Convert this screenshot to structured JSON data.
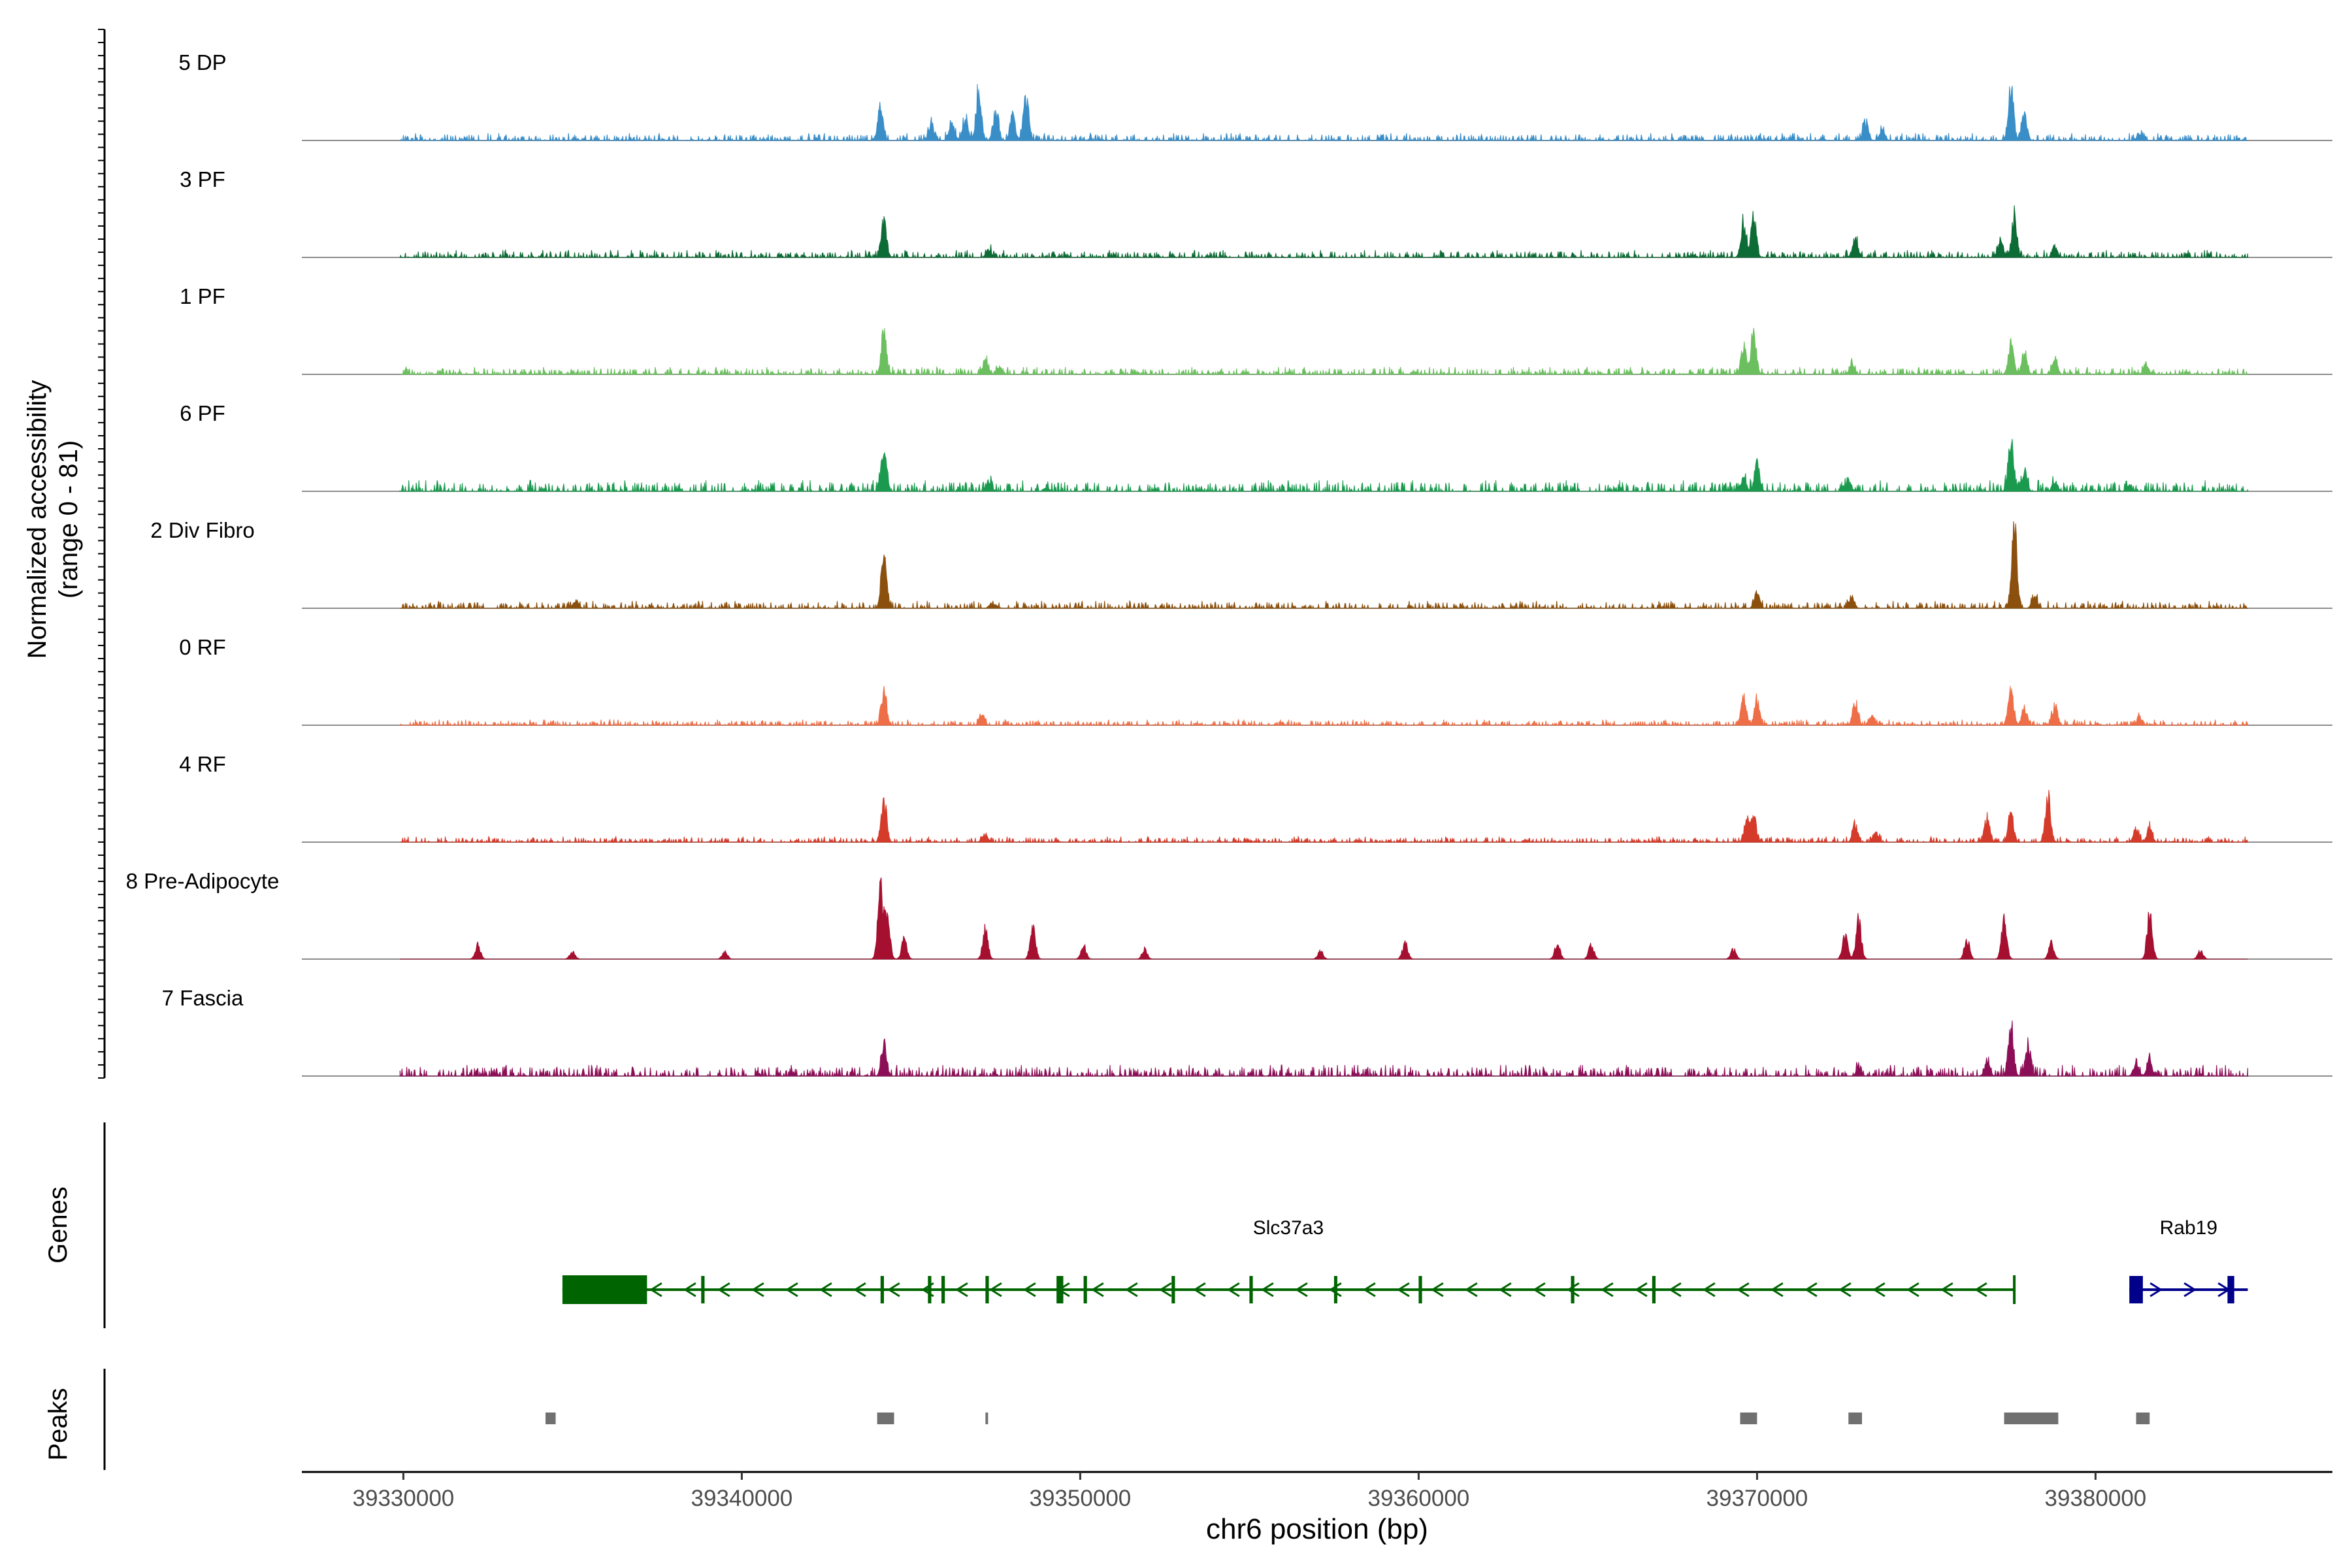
{
  "chart_data": {
    "type": "area",
    "xlabel": "chr6 position (bp)",
    "ylabel_line1": "Normalized accessibility",
    "ylabel_line2": "(range 0 - 81)",
    "xlim": [
      39327000,
      39387000
    ],
    "xticks": [
      39330000,
      39340000,
      39350000,
      39360000,
      39370000,
      39380000
    ],
    "signal_range": [
      0,
      81
    ],
    "track_labels": {
      "genes": "Genes",
      "peaks": "Peaks"
    },
    "series": [
      {
        "name": "5 DP",
        "color": "#3a8ec8",
        "bg": 2.0,
        "peaks": [
          [
            39344100,
            33
          ],
          [
            39345600,
            15
          ],
          [
            39346200,
            18
          ],
          [
            39346600,
            22
          ],
          [
            39347000,
            50
          ],
          [
            39347500,
            30
          ],
          [
            39348000,
            25
          ],
          [
            39348400,
            42
          ],
          [
            39373200,
            20
          ],
          [
            39373700,
            10
          ],
          [
            39377500,
            55
          ],
          [
            39377900,
            25
          ],
          [
            39381300,
            7
          ]
        ]
      },
      {
        "name": "3 PF",
        "color": "#0d6b35",
        "bg": 2.0,
        "peaks": [
          [
            39344200,
            35
          ],
          [
            39347300,
            8
          ],
          [
            39369600,
            32
          ],
          [
            39369900,
            40
          ],
          [
            39372900,
            18
          ],
          [
            39377600,
            40
          ],
          [
            39377200,
            14
          ],
          [
            39378800,
            10
          ]
        ]
      },
      {
        "name": "1 PF",
        "color": "#6bbf5e",
        "bg": 2.0,
        "peaks": [
          [
            39344200,
            45
          ],
          [
            39347200,
            14
          ],
          [
            39347600,
            8
          ],
          [
            39369600,
            28
          ],
          [
            39369900,
            38
          ],
          [
            39372800,
            9
          ],
          [
            39377500,
            30
          ],
          [
            39377900,
            20
          ],
          [
            39378800,
            14
          ],
          [
            39381500,
            8
          ]
        ]
      },
      {
        "name": "6 PF",
        "color": "#1b9a4f",
        "bg": 3.0,
        "peaks": [
          [
            39344200,
            45
          ],
          [
            39347300,
            10
          ],
          [
            39349000,
            4
          ],
          [
            39369600,
            14
          ],
          [
            39370000,
            28
          ],
          [
            39372700,
            12
          ],
          [
            39377500,
            55
          ],
          [
            39377900,
            20
          ],
          [
            39378800,
            10
          ],
          [
            39381000,
            6
          ]
        ]
      },
      {
        "name": "2 Div Fibro",
        "color": "#8b500e",
        "bg": 2.0,
        "peaks": [
          [
            39335100,
            8
          ],
          [
            39344200,
            52
          ],
          [
            39347400,
            6
          ],
          [
            39370000,
            16
          ],
          [
            39372800,
            9
          ],
          [
            39377600,
            78
          ],
          [
            39378200,
            12
          ]
        ]
      },
      {
        "name": "0 RF",
        "color": "#ee6e47",
        "bg": 1.5,
        "peaks": [
          [
            39344200,
            34
          ],
          [
            39347100,
            10
          ],
          [
            39369600,
            26
          ],
          [
            39370000,
            26
          ],
          [
            39372900,
            24
          ],
          [
            39373400,
            10
          ],
          [
            39377500,
            40
          ],
          [
            39377900,
            15
          ],
          [
            39378800,
            20
          ],
          [
            39381300,
            8
          ]
        ]
      },
      {
        "name": "4 RF",
        "color": "#d43b2a",
        "bg": 1.5,
        "peaks": [
          [
            39344200,
            42
          ],
          [
            39347200,
            7
          ],
          [
            39369700,
            22
          ],
          [
            39369900,
            24
          ],
          [
            39372900,
            18
          ],
          [
            39373500,
            10
          ],
          [
            39376800,
            25
          ],
          [
            39377500,
            30
          ],
          [
            39378600,
            45
          ],
          [
            39381200,
            12
          ],
          [
            39381600,
            14
          ]
        ]
      },
      {
        "name": "8 Pre-Adipocyte",
        "color": "#a50f30",
        "bg": 0.0,
        "peaks": [
          [
            39332200,
            14
          ],
          [
            39335000,
            8
          ],
          [
            39339500,
            8
          ],
          [
            39344100,
            76
          ],
          [
            39344300,
            40
          ],
          [
            39344800,
            20
          ],
          [
            39347200,
            30
          ],
          [
            39348600,
            32
          ],
          [
            39350100,
            14
          ],
          [
            39351900,
            10
          ],
          [
            39357100,
            8
          ],
          [
            39359600,
            16
          ],
          [
            39364100,
            16
          ],
          [
            39365100,
            14
          ],
          [
            39369300,
            10
          ],
          [
            39372600,
            24
          ],
          [
            39373000,
            40
          ],
          [
            39376200,
            20
          ],
          [
            39377300,
            40
          ],
          [
            39378700,
            16
          ],
          [
            39381600,
            46
          ],
          [
            39383100,
            8
          ]
        ]
      },
      {
        "name": "7 Fascia",
        "color": "#8c0e57",
        "bg": 3.0,
        "peaks": [
          [
            39344200,
            30
          ],
          [
            39373000,
            8
          ],
          [
            39376800,
            14
          ],
          [
            39377500,
            48
          ],
          [
            39378000,
            30
          ],
          [
            39381200,
            12
          ],
          [
            39381600,
            15
          ]
        ]
      }
    ],
    "genes": [
      {
        "name": "Slc37a3",
        "color": "#006400",
        "strand": "-",
        "start": 39334700,
        "end": 39377600,
        "exons": [
          [
            39334700,
            39337200
          ],
          [
            39338800,
            39338900
          ],
          [
            39344100,
            39344200
          ],
          [
            39345500,
            39345600
          ],
          [
            39345900,
            39346000
          ],
          [
            39347200,
            39347300
          ],
          [
            39349300,
            39349500
          ],
          [
            39350100,
            39350200
          ],
          [
            39352700,
            39352800
          ],
          [
            39355000,
            39355100
          ],
          [
            39357500,
            39357550
          ],
          [
            39360000,
            39360100
          ],
          [
            39364500,
            39364600
          ],
          [
            39366900,
            39367000
          ]
        ]
      },
      {
        "name": "Rab19",
        "color": "#00008b",
        "strand": "+",
        "start": 39381000,
        "end": 39384500,
        "exons": [
          [
            39381000,
            39381400
          ],
          [
            39383900,
            39384100
          ]
        ]
      }
    ],
    "peaks": [
      [
        39334200,
        39334500
      ],
      [
        39344000,
        39344500
      ],
      [
        39347200,
        39347250
      ],
      [
        39369500,
        39370000
      ],
      [
        39372700,
        39373100
      ],
      [
        39377300,
        39378900
      ],
      [
        39381200,
        39381600
      ]
    ]
  }
}
